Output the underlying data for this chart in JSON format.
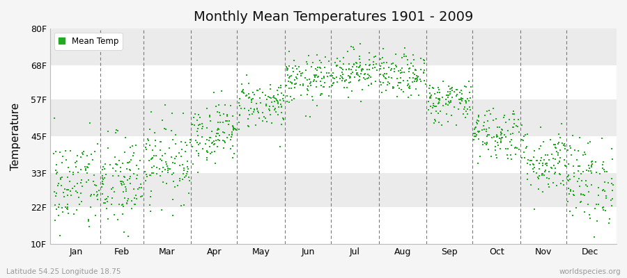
{
  "title": "Monthly Mean Temperatures 1901 - 2009",
  "ylabel": "Temperature",
  "yticks": [
    10,
    22,
    33,
    45,
    57,
    68,
    80
  ],
  "ytick_labels": [
    "10F",
    "22F",
    "33F",
    "45F",
    "57F",
    "68F",
    "80F"
  ],
  "ylim": [
    10,
    80
  ],
  "months": [
    "Jan",
    "Feb",
    "Mar",
    "Apr",
    "May",
    "Jun",
    "Jul",
    "Aug",
    "Sep",
    "Oct",
    "Nov",
    "Dec"
  ],
  "dot_color": "#22aa22",
  "dot_size": 3,
  "background_color": "#f5f5f5",
  "band_colors": [
    "#ffffff",
    "#ebebeb"
  ],
  "grid_color": "#999999",
  "footer_left": "Latitude 54.25 Longitude 18.75",
  "footer_right": "worldspecies.org",
  "legend_label": "Mean Temp",
  "monthly_means_f": [
    29.0,
    29.5,
    37.0,
    46.5,
    55.5,
    63.0,
    66.5,
    64.5,
    56.5,
    46.0,
    37.0,
    30.5
  ],
  "monthly_stds_f": [
    8.0,
    8.0,
    6.5,
    5.0,
    4.0,
    4.0,
    3.5,
    3.5,
    3.5,
    4.5,
    5.5,
    7.0
  ],
  "n_years": 109,
  "seed": 42
}
